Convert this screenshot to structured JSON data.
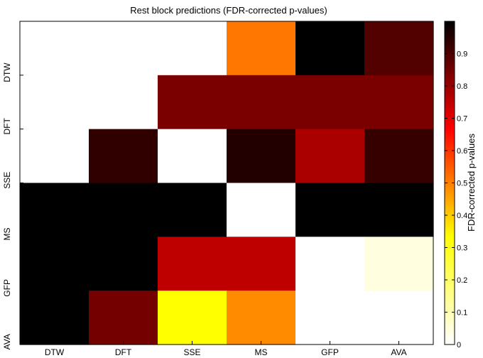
{
  "chart_data": {
    "type": "heatmap",
    "title": "Rest block predictions (FDR-corrected p-values)",
    "x_categories": [
      "DTW",
      "DFT",
      "SSE",
      "MS",
      "GFP",
      "AVA"
    ],
    "y_categories": [
      "DTW",
      "DFT",
      "SSE",
      "MS",
      "GFP",
      "AVA"
    ],
    "values": [
      [
        0.0,
        0.0,
        0.0,
        0.45,
        1.0,
        0.88
      ],
      [
        0.0,
        0.0,
        0.82,
        0.82,
        0.82,
        0.82
      ],
      [
        0.0,
        0.93,
        0.0,
        0.95,
        0.75,
        0.92
      ],
      [
        1.0,
        1.0,
        1.0,
        0.0,
        1.0,
        1.0
      ],
      [
        1.0,
        1.0,
        0.72,
        0.72,
        0.0,
        0.03
      ],
      [
        1.0,
        0.83,
        0.25,
        0.42,
        0.0,
        0.0
      ]
    ],
    "colorbar": {
      "label": "FDR-corrected p-values",
      "range": [
        0,
        1
      ],
      "ticks": [
        "0",
        "0.1",
        "0.2",
        "0.3",
        "0.4",
        "0.5",
        "0.6",
        "0.7",
        "0.8",
        "0.9"
      ],
      "colormap": "reversed hot"
    }
  }
}
